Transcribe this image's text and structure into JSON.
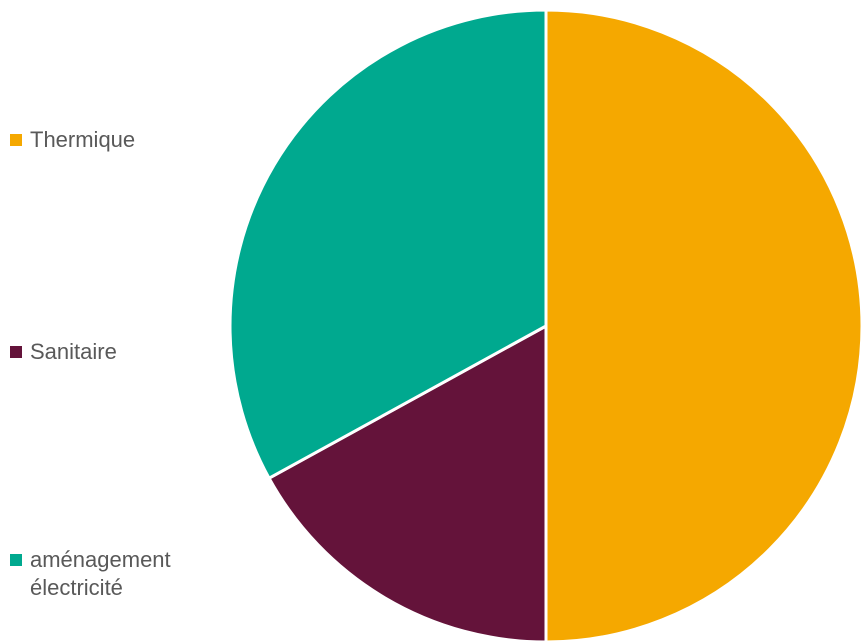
{
  "chart_data": {
    "type": "pie",
    "title": "",
    "categories": [
      "Thermique",
      "Sanitaire",
      "aménagement\nélectricité"
    ],
    "values": [
      50,
      17,
      33
    ],
    "colors": [
      "#F5A800",
      "#64133A",
      "#00A98F"
    ],
    "start_angle_deg": 0,
    "direction": "clockwise",
    "legend_position": "left",
    "slice_border_color": "#ffffff"
  }
}
